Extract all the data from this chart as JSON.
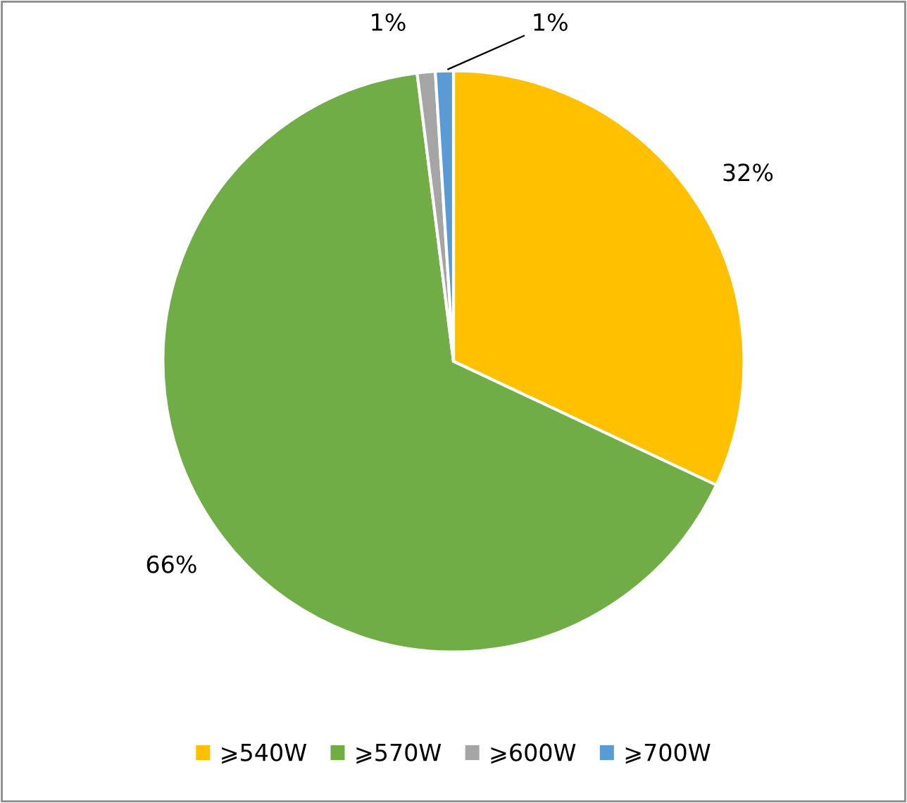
{
  "chart_data": {
    "type": "pie",
    "categories": [
      "⩾540W",
      "⩾570W",
      "⩾600W",
      "⩾700W"
    ],
    "values": [
      32,
      66,
      1,
      1
    ],
    "colors": [
      "#ffc000",
      "#70ad47",
      "#a5a5a5",
      "#5b9bd5"
    ],
    "value_labels": [
      "32%",
      "66%",
      "1%",
      "1%"
    ],
    "legend": "bottom"
  }
}
